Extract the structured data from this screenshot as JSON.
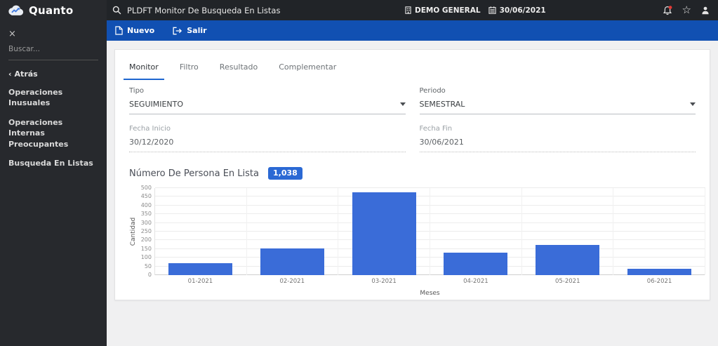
{
  "brand": {
    "name": "Quanto"
  },
  "sidebar": {
    "close": "×",
    "search_placeholder": "Buscar...",
    "back_chevron": "‹",
    "back_label": "Atrás",
    "items": [
      {
        "label": "Operaciones Inusuales"
      },
      {
        "label": "Operaciones Internas Preocupantes"
      },
      {
        "label": "Busqueda En Listas"
      }
    ]
  },
  "topbar": {
    "title": "PLDFT Monitor De Busqueda En Listas",
    "company": "DEMO GENERAL",
    "date": "30/06/2021"
  },
  "toolbar": {
    "new_label": "Nuevo",
    "exit_label": "Salir"
  },
  "tabs": [
    {
      "label": "Monitor",
      "active": true
    },
    {
      "label": "Filtro",
      "active": false
    },
    {
      "label": "Resultado",
      "active": false
    },
    {
      "label": "Complementar",
      "active": false
    }
  ],
  "form": {
    "tipo": {
      "label": "Tipo",
      "value": "SEGUIMIENTO"
    },
    "periodo": {
      "label": "Periodo",
      "value": "SEMESTRAL"
    },
    "fecha_inicio": {
      "label": "Fecha Inicio",
      "value": "30/12/2020"
    },
    "fecha_fin": {
      "label": "Fecha Fin",
      "value": "30/06/2021"
    }
  },
  "section": {
    "title": "Número De Persona En Lista",
    "badge": "1,038"
  },
  "chart_data": {
    "type": "bar",
    "title": "Número De Persona En Lista",
    "categories": [
      "01-2021",
      "02-2021",
      "03-2021",
      "04-2021",
      "05-2021",
      "06-2021"
    ],
    "values": [
      70,
      153,
      475,
      128,
      174,
      38
    ],
    "total": 1038,
    "xlabel": "Meses",
    "ylabel": "Cantidad",
    "ylim": [
      0,
      500
    ],
    "ytick_step": 50,
    "grid": true,
    "legend": "none",
    "bar_color": "#3a6cd8"
  },
  "colors": {
    "accent_blue": "#1150b2",
    "tab_underline": "#1e66d0",
    "bar_blue": "#3a6cd8",
    "badge_blue": "#2b69d4",
    "notification_red": "#e53935",
    "sidebar_bg": "#27292d",
    "topbar_bg": "#212428"
  }
}
